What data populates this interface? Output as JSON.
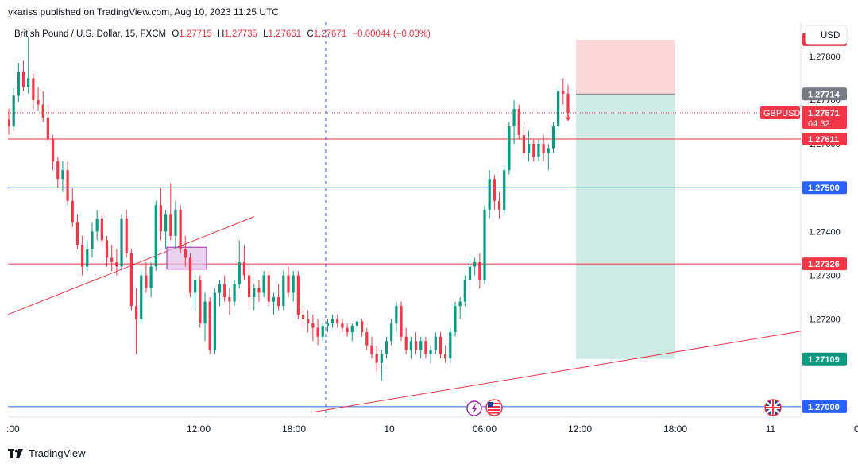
{
  "publisher_line": "ykariss published on TradingView.com, Aug 10, 2023 11:25 UTC",
  "footer_brand": "TradingView",
  "icons": {
    "flash": "flash-icon",
    "us_flag": "us-flag-icon",
    "uk_flag": "uk-flag-icon",
    "logo": "tradingview-logo-icon"
  },
  "chart_data": {
    "type": "candlestick",
    "legend": {
      "symbol": "British Pound / U.S. Dollar, 15, FXCM",
      "o_label": "O",
      "o_value": "1.27715",
      "h_label": "H",
      "h_value": "1.27735",
      "l_label": "L",
      "l_value": "1.27661",
      "c_label": "C",
      "c_value": "1.27671",
      "change": "−0.00044 (−0.03%)"
    },
    "currency": "USD",
    "ylim": [
      1.26978,
      1.27885
    ],
    "y_ticks": [
      "1.27800",
      "1.27700",
      "1.27600",
      "1.27400",
      "1.27300",
      "1.27200"
    ],
    "x_ticks": [
      "Aug 9 00:00",
      "Aug 9 12:00",
      "Aug 9 18:00",
      "Aug 10 00:00",
      "Aug 10 06:00",
      "Aug 10 12:00",
      "Aug 10 18:00",
      "Aug 11 00:00",
      "Aug 11 06:00"
    ],
    "x_tick_labels": [
      ":00",
      "12:00",
      "18:00",
      "10",
      "06:00",
      "12:00",
      "18:00",
      "11",
      "06:00"
    ],
    "horizontal_lines": [
      {
        "price": 1.27611,
        "label": "1.27611",
        "color": "#f23645"
      },
      {
        "price": 1.275,
        "label": "1.27500",
        "color": "#2962ff"
      },
      {
        "price": 1.27326,
        "label": "1.27326",
        "color": "#f23645"
      },
      {
        "price": 1.27,
        "label": "1.27000",
        "color": "#2962ff"
      }
    ],
    "price_labels": [
      {
        "price": 1.27838,
        "text": "1.27838",
        "color": "#f23645"
      },
      {
        "price": 1.27714,
        "text": "1.27714",
        "color": "#787b86"
      },
      {
        "price": 1.27109,
        "text": "1.27109",
        "color": "#089981"
      }
    ],
    "current": {
      "symbol": "GBPUSD",
      "price": 1.27671,
      "text": "1.27671",
      "countdown": "04:32",
      "color": "#f23645"
    },
    "position": {
      "type": "short",
      "entry": 1.27714,
      "stop": 1.27838,
      "target": 1.27109,
      "start": "Aug 10 11:45",
      "end": "Aug 10 18:00"
    },
    "vertical_line": "Aug 9 20:00",
    "trendlines": [
      {
        "x1": "Aug 8 23:50",
        "y1": 1.27208,
        "x2": "Aug 9 15:30",
        "y2": 1.27434
      },
      {
        "x1": "Aug 9 19:15",
        "y1": 1.26988,
        "x2": "Aug 11 07:50",
        "y2": 1.27208
      },
      {
        "x1": "Aug 8 23:50",
        "y1": 1.27878,
        "x2": "Aug 9 20:00",
        "y2": 1.27998
      }
    ],
    "rectangle": {
      "x1": "Aug 9 10:00",
      "x2": "Aug 9 12:30",
      "y1": 1.27364,
      "y2": 1.27314
    },
    "candles": [
      [
        1.27656,
        1.2768,
        1.27621,
        1.2764
      ],
      [
        1.2764,
        1.27728,
        1.2763,
        1.2771
      ],
      [
        1.2771,
        1.27785,
        1.27695,
        1.27765
      ],
      [
        1.27765,
        1.2779,
        1.2772,
        1.2773
      ],
      [
        1.2773,
        1.27845,
        1.27715,
        1.2775
      ],
      [
        1.2775,
        1.2776,
        1.2768,
        1.277
      ],
      [
        1.277,
        1.2773,
        1.27675,
        1.2769
      ],
      [
        1.2769,
        1.2772,
        1.2765,
        1.2766
      ],
      [
        1.2766,
        1.2769,
        1.276,
        1.2761
      ],
      [
        1.2761,
        1.2762,
        1.2754,
        1.2756
      ],
      [
        1.2756,
        1.2757,
        1.275,
        1.2752
      ],
      [
        1.2752,
        1.2756,
        1.2749,
        1.2754
      ],
      [
        1.2754,
        1.2756,
        1.2746,
        1.2747
      ],
      [
        1.2747,
        1.275,
        1.2741,
        1.2742
      ],
      [
        1.2742,
        1.2744,
        1.2736,
        1.2737
      ],
      [
        1.2737,
        1.2739,
        1.273,
        1.2732
      ],
      [
        1.2732,
        1.2738,
        1.2731,
        1.2736
      ],
      [
        1.2736,
        1.2742,
        1.2734,
        1.274
      ],
      [
        1.274,
        1.2745,
        1.2738,
        1.2743
      ],
      [
        1.2743,
        1.2744,
        1.2737,
        1.2738
      ],
      [
        1.2738,
        1.2739,
        1.2732,
        1.2734
      ],
      [
        1.2734,
        1.2737,
        1.2731,
        1.2733
      ],
      [
        1.2733,
        1.2736,
        1.273,
        1.2732
      ],
      [
        1.2732,
        1.2744,
        1.2731,
        1.2743
      ],
      [
        1.2743,
        1.2745,
        1.2734,
        1.2735
      ],
      [
        1.2735,
        1.2736,
        1.2722,
        1.2723
      ],
      [
        1.2723,
        1.2727,
        1.2712,
        1.272
      ],
      [
        1.272,
        1.2731,
        1.2719,
        1.273
      ],
      [
        1.273,
        1.2733,
        1.2726,
        1.2727
      ],
      [
        1.2727,
        1.2733,
        1.2725,
        1.2732
      ],
      [
        1.2732,
        1.2747,
        1.2731,
        1.2746
      ],
      [
        1.2746,
        1.275,
        1.2738,
        1.274
      ],
      [
        1.274,
        1.2745,
        1.2736,
        1.2744
      ],
      [
        1.2744,
        1.2751,
        1.2738,
        1.2739
      ],
      [
        1.2739,
        1.2747,
        1.2736,
        1.2745
      ],
      [
        1.2745,
        1.2746,
        1.2735,
        1.2736
      ],
      [
        1.2736,
        1.2739,
        1.2732,
        1.2734
      ],
      [
        1.2734,
        1.2735,
        1.2725,
        1.2726
      ],
      [
        1.2726,
        1.273,
        1.2722,
        1.2729
      ],
      [
        1.2729,
        1.273,
        1.2718,
        1.2719
      ],
      [
        1.2719,
        1.2726,
        1.2715,
        1.2724
      ],
      [
        1.2724,
        1.2725,
        1.2712,
        1.2713
      ],
      [
        1.2713,
        1.2727,
        1.2712,
        1.2726
      ],
      [
        1.2726,
        1.2729,
        1.2723,
        1.2728
      ],
      [
        1.2728,
        1.273,
        1.2724,
        1.2725
      ],
      [
        1.2725,
        1.2727,
        1.2721,
        1.2724
      ],
      [
        1.2724,
        1.2729,
        1.2723,
        1.2728
      ],
      [
        1.2728,
        1.2738,
        1.2727,
        1.2733
      ],
      [
        1.2733,
        1.2737,
        1.2729,
        1.273
      ],
      [
        1.273,
        1.2732,
        1.2723,
        1.2725
      ],
      [
        1.2725,
        1.2728,
        1.2722,
        1.2727
      ],
      [
        1.2727,
        1.2729,
        1.2724,
        1.2726
      ],
      [
        1.2726,
        1.2731,
        1.2725,
        1.273
      ],
      [
        1.273,
        1.2731,
        1.2723,
        1.2724
      ],
      [
        1.2724,
        1.2726,
        1.2721,
        1.2725
      ],
      [
        1.2725,
        1.2728,
        1.2722,
        1.2723
      ],
      [
        1.2723,
        1.2731,
        1.2722,
        1.273
      ],
      [
        1.273,
        1.2732,
        1.2725,
        1.2726
      ],
      [
        1.2726,
        1.2731,
        1.2724,
        1.273
      ],
      [
        1.273,
        1.2731,
        1.272,
        1.2721
      ],
      [
        1.2721,
        1.2723,
        1.2718,
        1.272
      ],
      [
        1.272,
        1.2722,
        1.2717,
        1.2719
      ],
      [
        1.2719,
        1.2721,
        1.2715,
        1.2718
      ],
      [
        1.2718,
        1.272,
        1.2714,
        1.2716
      ],
      [
        1.2716,
        1.2719,
        1.2715,
        1.27185
      ],
      [
        1.27185,
        1.272,
        1.2717,
        1.2719
      ],
      [
        1.2719,
        1.2721,
        1.2718,
        1.272
      ],
      [
        1.272,
        1.2721,
        1.2718,
        1.2719
      ],
      [
        1.2719,
        1.272,
        1.2717,
        1.2718
      ],
      [
        1.2718,
        1.2719,
        1.2716,
        1.2717
      ],
      [
        1.2717,
        1.2719,
        1.2715,
        1.27185
      ],
      [
        1.27185,
        1.272,
        1.2717,
        1.27195
      ],
      [
        1.27195,
        1.272,
        1.2716,
        1.2717
      ],
      [
        1.2717,
        1.2718,
        1.2713,
        1.2714
      ],
      [
        1.2714,
        1.2716,
        1.2711,
        1.2712
      ],
      [
        1.2712,
        1.2714,
        1.2708,
        1.271
      ],
      [
        1.271,
        1.2713,
        1.2706,
        1.2712
      ],
      [
        1.2712,
        1.2716,
        1.2711,
        1.2715
      ],
      [
        1.2715,
        1.272,
        1.2714,
        1.2719
      ],
      [
        1.2719,
        1.2724,
        1.2717,
        1.2723
      ],
      [
        1.2723,
        1.2724,
        1.2715,
        1.2716
      ],
      [
        1.2716,
        1.2718,
        1.2712,
        1.2713
      ],
      [
        1.2713,
        1.2716,
        1.2711,
        1.2715
      ],
      [
        1.2715,
        1.2717,
        1.2712,
        1.2713
      ],
      [
        1.2713,
        1.2716,
        1.2711,
        1.2715
      ],
      [
        1.2715,
        1.2716,
        1.2711,
        1.2712
      ],
      [
        1.2712,
        1.2714,
        1.271,
        1.2713
      ],
      [
        1.2713,
        1.2717,
        1.2712,
        1.2716
      ],
      [
        1.2716,
        1.2717,
        1.2711,
        1.2712
      ],
      [
        1.2712,
        1.2714,
        1.271,
        1.2711
      ],
      [
        1.2711,
        1.2718,
        1.271,
        1.2717
      ],
      [
        1.2717,
        1.2724,
        1.2716,
        1.2723
      ],
      [
        1.2723,
        1.2725,
        1.272,
        1.2724
      ],
      [
        1.2724,
        1.273,
        1.2723,
        1.2729
      ],
      [
        1.2729,
        1.2734,
        1.2726,
        1.2732
      ],
      [
        1.2732,
        1.2734,
        1.273,
        1.2733
      ],
      [
        1.2733,
        1.2735,
        1.2727,
        1.2729
      ],
      [
        1.2729,
        1.2746,
        1.2728,
        1.2745
      ],
      [
        1.2745,
        1.2754,
        1.2743,
        1.2752
      ],
      [
        1.2752,
        1.2753,
        1.2745,
        1.2747
      ],
      [
        1.2747,
        1.2749,
        1.2743,
        1.2745
      ],
      [
        1.2745,
        1.2755,
        1.2744,
        1.2754
      ],
      [
        1.2754,
        1.2765,
        1.2753,
        1.2764
      ],
      [
        1.2764,
        1.277,
        1.276,
        1.2768
      ],
      [
        1.2768,
        1.2769,
        1.2761,
        1.2762
      ],
      [
        1.2762,
        1.2764,
        1.2757,
        1.2758
      ],
      [
        1.2758,
        1.2763,
        1.2756,
        1.276
      ],
      [
        1.276,
        1.2761,
        1.2756,
        1.2757
      ],
      [
        1.2757,
        1.2761,
        1.2756,
        1.276
      ],
      [
        1.276,
        1.2762,
        1.2756,
        1.2758
      ],
      [
        1.2758,
        1.276,
        1.2754,
        1.2759
      ],
      [
        1.2759,
        1.2765,
        1.2758,
        1.2764
      ],
      [
        1.2764,
        1.2773,
        1.2763,
        1.2772
      ],
      [
        1.2772,
        1.2775,
        1.2769,
        1.27715
      ],
      [
        1.27715,
        1.27735,
        1.27661,
        1.27671
      ]
    ]
  }
}
